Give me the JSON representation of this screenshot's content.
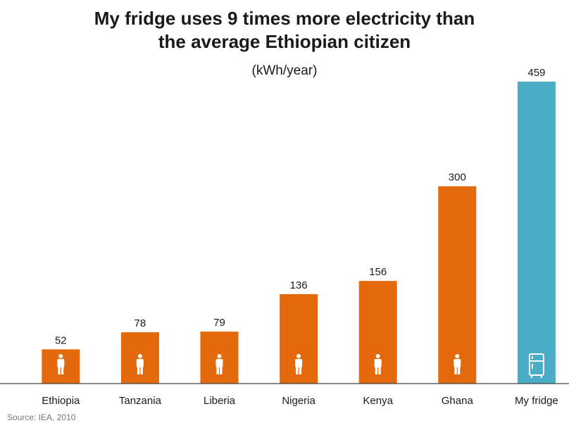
{
  "title_line1": "My fridge uses 9 times more electricity than",
  "title_line2": "the average Ethiopian citizen",
  "subtitle": "(kWh/year)",
  "source": "Source: IEA, 2010",
  "colors": {
    "country_bar": "#E4690A",
    "fridge_bar": "#4AACC5",
    "icon": "#ffffff",
    "axis": "#444444"
  },
  "chart_data": {
    "type": "bar",
    "categories": [
      "Ethiopia",
      "Tanzania",
      "Liberia",
      "Nigeria",
      "Kenya",
      "Ghana",
      "My fridge"
    ],
    "values": [
      52,
      78,
      79,
      136,
      156,
      300,
      459
    ],
    "icons": [
      "person-icon",
      "person-icon",
      "person-icon",
      "person-icon",
      "person-icon",
      "person-icon",
      "fridge-icon"
    ],
    "title": "My fridge uses 9 times more electricity than the average Ethiopian citizen",
    "ylabel": "(kWh/year)",
    "ylim": [
      0,
      459
    ],
    "grid": false,
    "legend": "none"
  }
}
